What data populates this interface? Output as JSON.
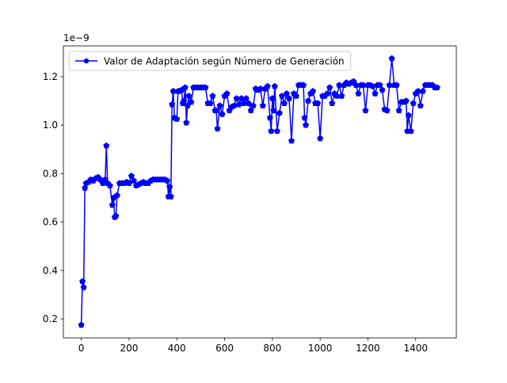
{
  "chart_data": {
    "type": "line",
    "x": [
      0,
      5,
      10,
      15,
      20,
      30,
      40,
      50,
      60,
      70,
      80,
      90,
      100,
      105,
      110,
      120,
      130,
      135,
      140,
      145,
      150,
      160,
      170,
      180,
      190,
      200,
      210,
      220,
      230,
      240,
      250,
      260,
      270,
      280,
      290,
      300,
      310,
      320,
      330,
      340,
      350,
      360,
      365,
      370,
      375,
      380,
      385,
      390,
      400,
      405,
      410,
      420,
      425,
      430,
      435,
      440,
      445,
      450,
      460,
      470,
      480,
      490,
      500,
      510,
      520,
      530,
      540,
      550,
      560,
      565,
      570,
      580,
      590,
      600,
      610,
      620,
      630,
      640,
      650,
      660,
      670,
      680,
      690,
      700,
      710,
      720,
      730,
      740,
      750,
      760,
      770,
      780,
      790,
      795,
      800,
      805,
      810,
      820,
      830,
      840,
      850,
      860,
      870,
      880,
      890,
      900,
      910,
      920,
      930,
      935,
      940,
      950,
      960,
      970,
      980,
      990,
      1000,
      1010,
      1020,
      1030,
      1040,
      1050,
      1060,
      1070,
      1080,
      1090,
      1100,
      1110,
      1120,
      1130,
      1140,
      1150,
      1160,
      1170,
      1180,
      1190,
      1200,
      1210,
      1220,
      1230,
      1240,
      1250,
      1260,
      1270,
      1280,
      1290,
      1300,
      1310,
      1320,
      1330,
      1340,
      1350,
      1360,
      1365,
      1370,
      1380,
      1390,
      1400,
      1410,
      1420,
      1430,
      1440,
      1450,
      1460,
      1470,
      1480,
      1490
    ],
    "series": [
      {
        "name": "Valor de Adaptación según Número de Generación",
        "color": "#0000ff",
        "values": [
          0.175,
          0.355,
          0.33,
          0.74,
          0.76,
          0.765,
          0.775,
          0.77,
          0.78,
          0.785,
          0.775,
          0.76,
          0.775,
          0.915,
          0.76,
          0.75,
          0.67,
          0.7,
          0.62,
          0.625,
          0.71,
          0.76,
          0.76,
          0.76,
          0.765,
          0.76,
          0.79,
          0.77,
          0.75,
          0.755,
          0.76,
          0.765,
          0.76,
          0.76,
          0.77,
          0.775,
          0.775,
          0.775,
          0.775,
          0.775,
          0.775,
          0.77,
          0.705,
          0.745,
          0.705,
          1.085,
          1.14,
          1.03,
          1.025,
          1.14,
          1.14,
          1.145,
          1.09,
          1.1,
          1.155,
          1.01,
          1.08,
          1.12,
          1.095,
          1.155,
          1.155,
          1.155,
          1.155,
          1.155,
          1.155,
          1.09,
          1.09,
          1.12,
          1.06,
          1.06,
          0.985,
          1.08,
          1.045,
          1.12,
          1.13,
          1.06,
          1.075,
          1.08,
          1.11,
          1.085,
          1.11,
          1.09,
          1.11,
          1.09,
          1.06,
          1.08,
          1.15,
          1.145,
          1.15,
          1.08,
          1.15,
          1.16,
          1.03,
          0.975,
          1.11,
          1.06,
          1.16,
          0.975,
          1.05,
          1.12,
          1.09,
          1.13,
          1.11,
          0.935,
          1.13,
          1.12,
          1.165,
          1.165,
          1.165,
          1.03,
          1.0,
          1.1,
          1.13,
          1.14,
          1.09,
          1.09,
          0.945,
          1.12,
          1.12,
          1.13,
          1.155,
          1.09,
          1.13,
          1.12,
          1.165,
          1.12,
          1.165,
          1.175,
          1.17,
          1.175,
          1.18,
          1.165,
          1.13,
          1.165,
          1.165,
          1.06,
          1.165,
          1.165,
          1.16,
          1.13,
          1.165,
          1.165,
          1.145,
          1.065,
          1.06,
          1.165,
          1.275,
          1.165,
          1.165,
          1.06,
          1.095,
          1.095,
          1.1,
          0.975,
          1.04,
          0.975,
          1.09,
          1.13,
          1.14,
          1.08,
          1.14,
          1.165,
          1.165,
          1.165,
          1.165,
          1.155,
          1.155
        ]
      }
    ],
    "xlim": [
      -75,
      1570
    ],
    "ylim": [
      0.1216,
      1.327
    ],
    "xticks": [
      0,
      200,
      400,
      600,
      800,
      1000,
      1200,
      1400
    ],
    "yticks": [
      0.2,
      0.4,
      0.6,
      0.8,
      {
        "value": 1,
        "label": "1.0"
      },
      1.2
    ],
    "y_offset_label": "1e−9",
    "legend": "upper left",
    "marker": "pentagon"
  }
}
